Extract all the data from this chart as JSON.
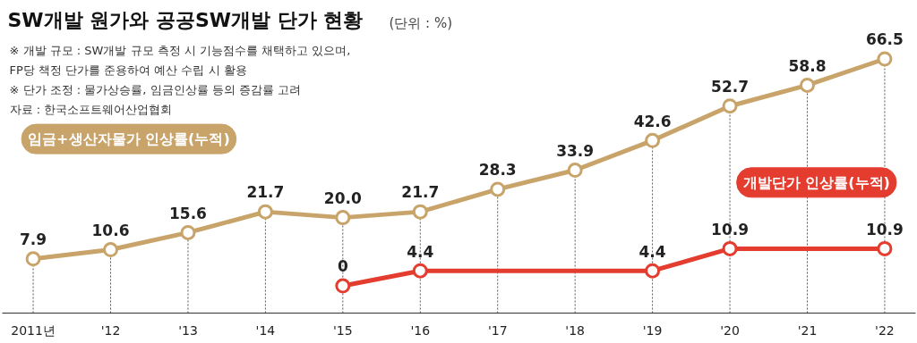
{
  "chart_data": {
    "type": "line",
    "title": "SW개발 원가와 공공SW개발 단가 현황",
    "subtitle": "(단위 : %)",
    "annotations": [
      "※ 개발 규모 : SW개발 규모 측정 시 기능점수를 채택하고 있으며,",
      "    FP당 책정 단가를 준용하여 예산 수립 시 활용",
      "※ 단가 조정 : 물가상승률, 임금인상률 등의 증감률 고려",
      "자료 : 한국소프트웨어산업협회"
    ],
    "xlim": [
      2010.6,
      2022.4
    ],
    "xticks": [
      {
        "value": 2011,
        "label": "2011년"
      },
      {
        "value": 2012,
        "label": "'12"
      },
      {
        "value": 2013,
        "label": "'13"
      },
      {
        "value": 2014,
        "label": "'14"
      },
      {
        "value": 2015,
        "label": "'15"
      },
      {
        "value": 2016,
        "label": "'16"
      },
      {
        "value": 2017,
        "label": "'17"
      },
      {
        "value": 2018,
        "label": "'18"
      },
      {
        "value": 2019,
        "label": "'19"
      },
      {
        "value": 2020,
        "label": "'20"
      },
      {
        "value": 2021,
        "label": "'21"
      },
      {
        "value": 2022,
        "label": "'22"
      }
    ],
    "tick_labels": "x",
    "series": [
      {
        "name": "임금+생산자물가 인상률(누적)",
        "color": "#c8a46a",
        "x": [
          2011,
          2012,
          2013,
          2014,
          2015,
          2016,
          2017,
          2018,
          2019,
          2020,
          2021,
          2022
        ],
        "values": [
          7.9,
          10.6,
          15.6,
          21.7,
          20.0,
          21.7,
          28.3,
          33.9,
          42.6,
          52.7,
          58.8,
          66.5
        ],
        "value_labels": [
          "7.9",
          "10.6",
          "15.6",
          "21.7",
          "20.0",
          "21.7",
          "28.3",
          "33.9",
          "42.6",
          "52.7",
          "58.8",
          "66.5"
        ]
      },
      {
        "name": "개발단가 인상률(누적)",
        "color": "#e43d2f",
        "x": [
          2015,
          2016,
          2019,
          2020,
          2022
        ],
        "values": [
          0,
          4.4,
          4.4,
          10.9,
          10.9
        ],
        "value_labels": [
          "0",
          "4.4",
          "4.4",
          "10.9",
          "10.9"
        ]
      }
    ],
    "grid": "x",
    "marker": "circle",
    "line_style": "solid"
  }
}
